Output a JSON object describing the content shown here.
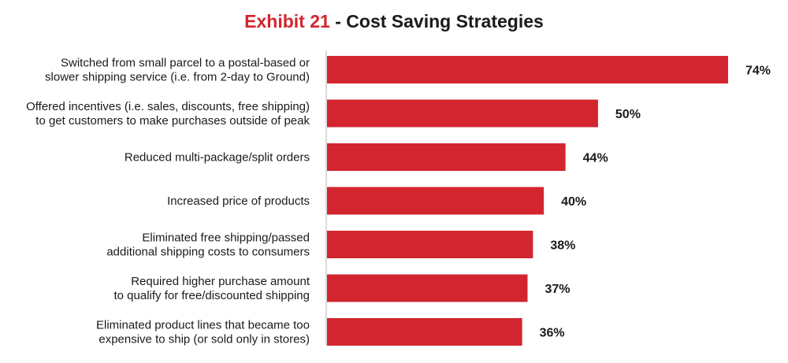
{
  "title": {
    "exhibit": "Exhibit 21",
    "separator": " - ",
    "text": "Cost Saving Strategies"
  },
  "colors": {
    "accent": "#d3252f",
    "bar": "#d3252f",
    "text": "#1a1a1a",
    "axis": "#b5b5b5"
  },
  "chart_data": {
    "type": "bar",
    "orientation": "horizontal",
    "title": "Exhibit 21 - Cost Saving Strategies",
    "xlabel": "",
    "ylabel": "",
    "grid": false,
    "legend": "none",
    "xlim": [
      0,
      74
    ],
    "categories": [
      [
        "Switched from small parcel to a postal-based or",
        "slower shipping service (i.e. from 2-day to Ground)"
      ],
      [
        "Offered incentives (i.e. sales, discounts, free shipping)",
        "to get customers to make purchases outside of peak"
      ],
      [
        "Reduced multi-package/split orders"
      ],
      [
        "Increased price of products"
      ],
      [
        "Eliminated free shipping/passed",
        "additional shipping costs to consumers"
      ],
      [
        "Required higher purchase amount",
        "to qualify for free/discounted shipping"
      ],
      [
        "Eliminated product lines that became too",
        "expensive to ship (or sold only in stores)"
      ]
    ],
    "values": [
      74,
      50,
      44,
      40,
      38,
      37,
      36
    ],
    "value_labels": [
      "74%",
      "50%",
      "44%",
      "40%",
      "38%",
      "37%",
      "36%"
    ]
  }
}
